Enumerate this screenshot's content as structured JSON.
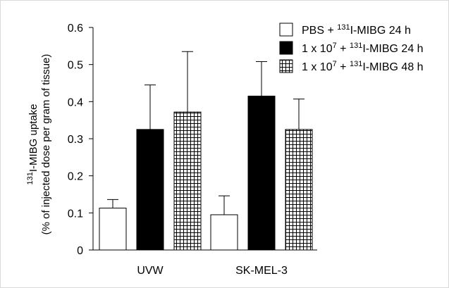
{
  "chart_data": {
    "type": "bar",
    "categories": [
      "UVW",
      "SK-MEL-3"
    ],
    "ylabel": {
      "line1_sup": "131",
      "line1_text": "I-MIBG uptake",
      "line2": "(% of injected dose per gram of tissue)"
    },
    "ylim": [
      0,
      0.6
    ],
    "yticks": [
      "0",
      "0.1",
      "0.2",
      "0.3",
      "0.4",
      "0.5",
      "0.6"
    ],
    "grid": false,
    "legend_position": "top-right",
    "series": [
      {
        "legend": {
          "pre": "PBS  + ",
          "sup": "131",
          "post": "I-MIBG 24 h"
        },
        "fill": "white",
        "values": [
          0.113,
          0.095
        ],
        "errors": [
          0.023,
          0.051
        ]
      },
      {
        "legend": {
          "pre": "1 x 10",
          "exp": "7",
          "mid": " + ",
          "sup": "131",
          "post": "I-MIBG 24 h"
        },
        "fill": "black",
        "values": [
          0.325,
          0.415
        ],
        "errors": [
          0.12,
          0.093
        ]
      },
      {
        "legend": {
          "pre": "1 x 10",
          "exp": "7",
          "mid": " + ",
          "sup": "131",
          "post": "I-MIBG 48 h"
        },
        "fill": "grid",
        "values": [
          0.372,
          0.325
        ],
        "errors": [
          0.163,
          0.082
        ]
      }
    ]
  },
  "colors": {
    "black": "#000000",
    "white": "#ffffff",
    "frame": "#d9d9d9"
  }
}
